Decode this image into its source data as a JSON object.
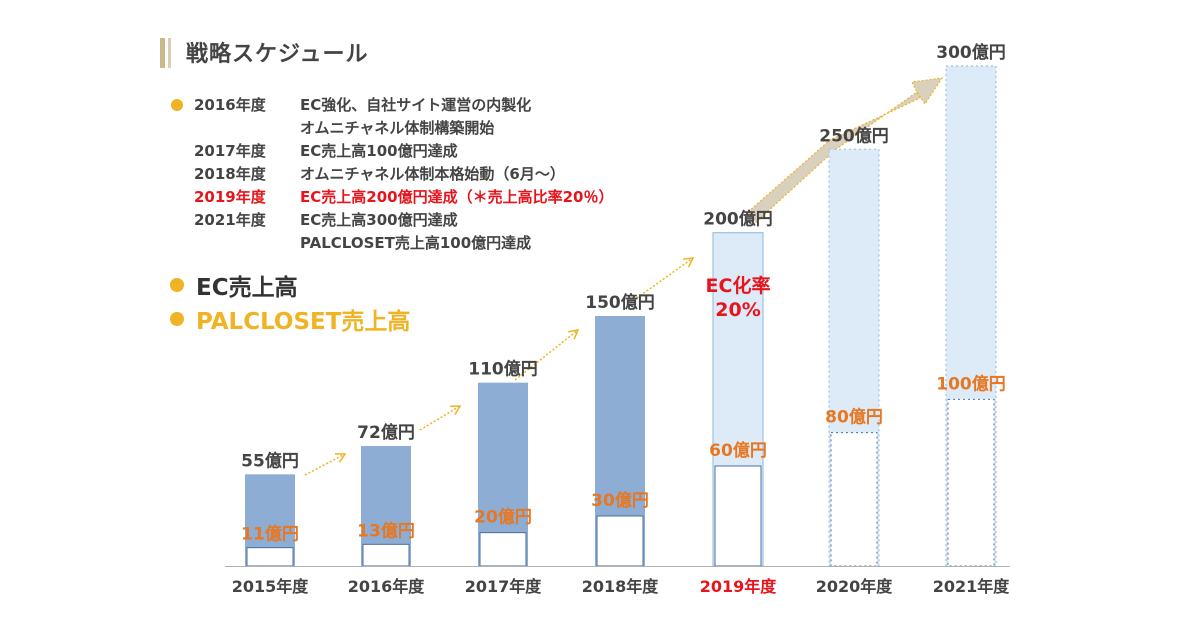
{
  "title": "戦略スケジュール",
  "schedule": [
    {
      "year": "2016年度",
      "text": "EC強化、自社サイト運営の内製化",
      "bullet": true,
      "highlight": false
    },
    {
      "year": "",
      "text": "オムニチャネル体制構築開始",
      "bullet": false,
      "highlight": false
    },
    {
      "year": "2017年度",
      "text": "EC売上高100億円達成",
      "bullet": false,
      "highlight": false
    },
    {
      "year": "2018年度",
      "text": "オムニチャネル体制本格始動（6月～）",
      "bullet": false,
      "highlight": false
    },
    {
      "year": "2019年度",
      "text": "EC売上高200億円達成（＊売上高比率20％）",
      "bullet": false,
      "highlight": true
    },
    {
      "year": "2021年度",
      "text": "EC売上高300億円達成",
      "bullet": false,
      "highlight": false
    },
    {
      "year": "",
      "text": "PALCLOSET売上高100億円達成",
      "bullet": false,
      "highlight": false
    }
  ],
  "legend": {
    "ec": "EC売上高",
    "palcloset": "PALCLOSET売上高"
  },
  "colors": {
    "ec_actual": "#8eadd4",
    "ec_plan": "#dcebf7",
    "palcloset_label": "#e87722",
    "ec_label": "#444444",
    "highlight": "#e8141b",
    "arrow": "#f0b323",
    "big_arrow": "#d9d1bd"
  },
  "chart_data": {
    "type": "bar",
    "categories": [
      "2015年度",
      "2016年度",
      "2017年度",
      "2018年度",
      "2019年度",
      "2020年度",
      "2021年度"
    ],
    "series": [
      {
        "name": "EC売上高",
        "values": [
          55,
          72,
          110,
          150,
          200,
          250,
          300
        ],
        "labels": [
          "55億円",
          "72億円",
          "110億円",
          "150億円",
          "200億円",
          "250億円",
          "300億円"
        ]
      },
      {
        "name": "PALCLOSET売上高",
        "values": [
          11,
          13,
          20,
          30,
          60,
          80,
          100
        ],
        "labels": [
          "11億円",
          "13億円",
          "20億円",
          "30億円",
          "60億円",
          "80億円",
          "100億円"
        ]
      }
    ],
    "status": [
      "actual",
      "actual",
      "actual",
      "actual",
      "plan",
      "plan",
      "plan"
    ],
    "highlight_category": "2019年度",
    "annotation": {
      "line1": "EC化率",
      "line2": "20%",
      "category": "2019年度"
    },
    "ylim": [
      0,
      300
    ]
  }
}
